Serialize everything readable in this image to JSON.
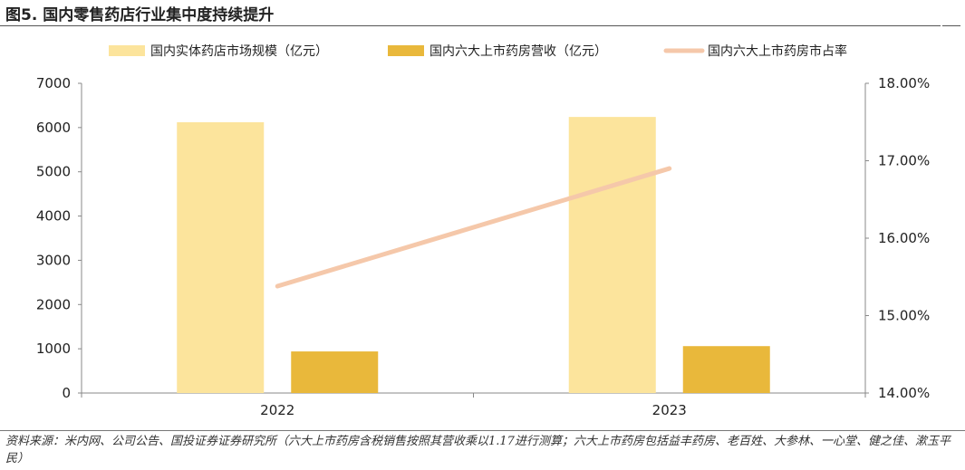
{
  "figure": {
    "title": "图5. 国内零售药店行业集中度持续提升",
    "source": "资料来源：米内网、公司公告、国投证券证券研究所（六大上市药房含税销售按照其营收乘以1.17进行测算；六大上市药房包括益丰药房、老百姓、大参林、一心堂、健之佳、漱玉平民）"
  },
  "chart_data": {
    "type": "bar",
    "categories": [
      "2022",
      "2023"
    ],
    "series": [
      {
        "name": "国内实体药店市场规模（亿元）",
        "kind": "bar",
        "axis": "left",
        "color": "#FCE49C",
        "values": [
          6120,
          6240
        ]
      },
      {
        "name": "国内六大上市药房营收（亿元）",
        "kind": "bar",
        "axis": "left",
        "color": "#E9B83B",
        "values": [
          940,
          1060
        ]
      },
      {
        "name": "国内六大上市药房市占率",
        "kind": "line",
        "axis": "right",
        "color": "#F5C8AA",
        "values": [
          15.38,
          16.9
        ]
      }
    ],
    "left_axis": {
      "min": 0,
      "max": 7000,
      "ticks": [
        "0",
        "1000",
        "2000",
        "3000",
        "4000",
        "5000",
        "6000",
        "7000"
      ]
    },
    "right_axis": {
      "min": 14,
      "max": 18,
      "ticks": [
        "14.00%",
        "15.00%",
        "16.00%",
        "17.00%",
        "18.00%"
      ]
    },
    "legend_position": "top",
    "grid": false
  }
}
